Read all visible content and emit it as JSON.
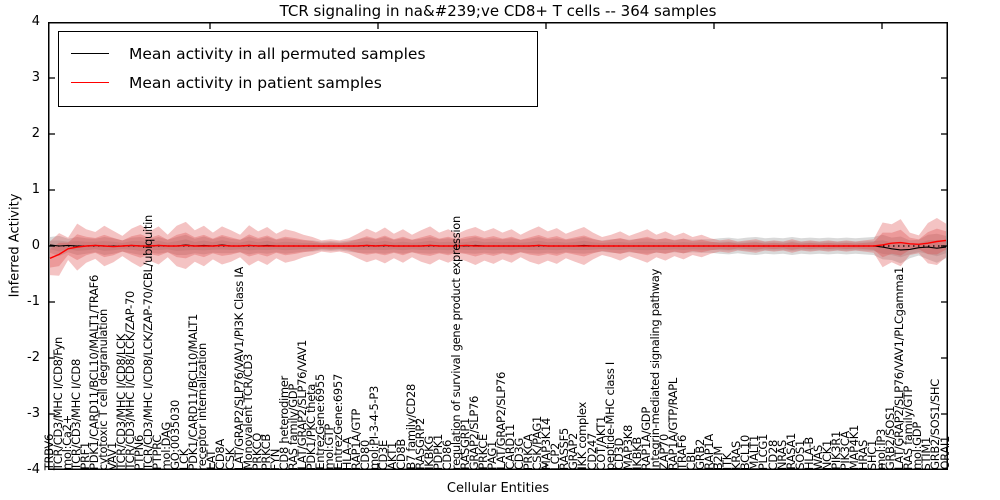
{
  "figure": {
    "title": "TCR signaling in na&#239;ve CD8+ T cells -- 364 samples",
    "xlabel": "Cellular Entities",
    "ylabel": "Inferred Activity"
  },
  "chart_data": {
    "type": "line",
    "title": "TCR signaling in na&#239;ve CD8+ T cells -- 364 samples",
    "xlabel": "Cellular Entities",
    "ylabel": "Inferred Activity",
    "ylim": [
      -4,
      4
    ],
    "yticks": [
      4,
      3,
      2,
      1,
      0,
      -1,
      -2,
      -3,
      -4
    ],
    "grid": false,
    "legend_position": "upper left",
    "legend": [
      {
        "label": "Mean activity in all permuted samples",
        "color": "#000000"
      },
      {
        "label": "Mean activity in patient samples",
        "color": "#ff0000"
      }
    ],
    "band_colors": {
      "patient": "#dd4444",
      "permuted": "#9a9a9a"
    },
    "categories": [
      "TRBV6",
      "TCR/CD3/MHC I/CD8/Fyn",
      "mol:Ca2+",
      "TCR/CD3/MHC I/CD8",
      "PRF1",
      "PDK1/CARD11/BCL10/MALT1/TRAF6",
      "cytotoxic T cell degranulation",
      "VAV1",
      "TCR/CD3/MHC I/CD8/LCK",
      "TCR/CD3/MHC I/CD8/LCK/ZAP-70",
      "PTPN6",
      "TCR/CD3/MHC I/CD8/LCK/ZAP-70/CBL/ubiquitin",
      "PTPRC",
      "mol:DAG",
      "GO:0035030",
      "LCK",
      "PDK1/CARD11/BCL10/MALT1",
      "receptor internalization",
      "LAT",
      "CD8A",
      "CSK",
      "LAT/GRAP2/SLP76/VAV1/PI3K Class IA",
      "Monovalent TCR/CD3",
      "PRKCQ",
      "PRKCB",
      "FYN",
      "CD8 heterodimer",
      "RAS family/GDP",
      "LAT/GRAP2/SLP76/VAV1",
      "PDK1/PKC theta",
      "EntrezGene:6955",
      "mol:GTP",
      "EntrezGene:6957",
      "HLA-A",
      "RAP1A/GTP",
      "CD80",
      "mol:PI-3-4-5-P3",
      "CD3E",
      "AKT1",
      "CD8B",
      "B7 family/CD28",
      "RASGRP2",
      "IKBKG",
      "PDPK1",
      "CD86",
      "regulation of survival gene product expression",
      "RASGRP1",
      "GRAP2/SLP76",
      "PRKCE",
      "PAG1",
      "LAT/GRAP2/SLP76",
      "CARD11",
      "CD3G",
      "PRKCA",
      "CSK/PAG1",
      "MAP3K14",
      "LCP2",
      "RASSF5",
      "GRAP2",
      "IKK complex",
      "CD247",
      "COT/AKT1",
      "peptide-MHC class I",
      "CD3D",
      "MAP3K8",
      "IKBKB",
      "RAP1A/GDP",
      "integrin-mediated signaling pathway",
      "ZAP70",
      "RAP1A/GTP/RAPL",
      "TRAF6",
      "CBL",
      "GRB2",
      "RAP1A",
      "B2M",
      "ITK",
      "KRAS",
      "BCL10",
      "MALT1",
      "PLCG1",
      "CD28",
      "NRAS",
      "RASA1",
      "SOS1",
      "HLA-B",
      "WAS",
      "NCK1",
      "PIK3R1",
      "PIK3CA",
      "MAP4K1",
      "HRAS",
      "SHC1",
      "mol:IP3",
      "GRB2/SOS1",
      "LAT/GRAP2/SLP76/VAV1/PLCgamma1",
      "RAS family/GTP",
      "mol:GDP",
      "STIM1",
      "GRB2/SOS1/SHC",
      "ORAI1"
    ],
    "series": [
      {
        "name": "Mean activity in all permuted samples",
        "color": "#000000",
        "style": "dashdot",
        "values": [
          0.02,
          0,
          0.01,
          0,
          0,
          0.01,
          0,
          0,
          0,
          0.01,
          0,
          0,
          0.01,
          0,
          0,
          0.02,
          0,
          0.01,
          0,
          0.02,
          0,
          0,
          0.01,
          0,
          0.01,
          0,
          0,
          0,
          0,
          0,
          0,
          0,
          0,
          0,
          0,
          0.01,
          0,
          0.01,
          0,
          0,
          0,
          0,
          0.01,
          0,
          0,
          0,
          0,
          0.01,
          0,
          0,
          0,
          0,
          0,
          0,
          0.01,
          0,
          0,
          0,
          0,
          0.01,
          0,
          0,
          0,
          0,
          0,
          0,
          0,
          0,
          0,
          0,
          0,
          0,
          0,
          0,
          0,
          0,
          0,
          0,
          0,
          0,
          0,
          0,
          0,
          0,
          0,
          0,
          0,
          0,
          0,
          0,
          0,
          0,
          -0.02,
          -0.05,
          -0.07,
          -0.06,
          -0.03,
          -0.02,
          -0.04,
          -0.02
        ]
      },
      {
        "name": "Mean activity in patient samples",
        "color": "#ff0000",
        "style": "solid",
        "values": [
          -0.22,
          -0.15,
          -0.05,
          -0.02,
          0,
          0.01,
          0,
          -0.01,
          0,
          0.01,
          0,
          0,
          0.01,
          0,
          0,
          0.01,
          0,
          0,
          0,
          0.01,
          0,
          0,
          0.01,
          0,
          0,
          0,
          0,
          0,
          0,
          0,
          0,
          0,
          0,
          0,
          0,
          0.01,
          0,
          0.01,
          0,
          0,
          0,
          0,
          0.01,
          0,
          0,
          0,
          0.01,
          0,
          0,
          0,
          0,
          0,
          0,
          0,
          0.01,
          0,
          0,
          0,
          0,
          0,
          0,
          0,
          0,
          0,
          0,
          0,
          0,
          0,
          0,
          0,
          0,
          0,
          0,
          0,
          0,
          0,
          0,
          0,
          0,
          0,
          0,
          0,
          0,
          0,
          0,
          0,
          0,
          0,
          0,
          0,
          0,
          0,
          0.02,
          0.05,
          0.06,
          0.04,
          0.03,
          0.05,
          0.08,
          0.1
        ]
      }
    ],
    "bands": [
      {
        "name": "permuted-sample spread",
        "color": "#9a9a9a",
        "opacity": 0.38,
        "amplitude": [
          0.14,
          0.18,
          0.12,
          0.16,
          0.14,
          0.12,
          0.16,
          0.14,
          0.1,
          0.14,
          0.16,
          0.12,
          0.15,
          0.11,
          0.16,
          0.18,
          0.13,
          0.16,
          0.12,
          0.15,
          0.13,
          0.11,
          0.16,
          0.12,
          0.15,
          0.11,
          0.14,
          0.12,
          0.1,
          0.1,
          0.08,
          0.09,
          0.08,
          0.1,
          0.12,
          0.14,
          0.12,
          0.15,
          0.11,
          0.14,
          0.11,
          0.13,
          0.15,
          0.12,
          0.14,
          0.11,
          0.13,
          0.15,
          0.12,
          0.14,
          0.12,
          0.14,
          0.11,
          0.13,
          0.15,
          0.12,
          0.14,
          0.11,
          0.13,
          0.15,
          0.12,
          0.1,
          0.12,
          0.13,
          0.11,
          0.13,
          0.14,
          0.12,
          0.13,
          0.11,
          0.13,
          0.11,
          0.12,
          0.12,
          0.14,
          0.15,
          0.13,
          0.15,
          0.16,
          0.14,
          0.15,
          0.14,
          0.16,
          0.14,
          0.15,
          0.14,
          0.15,
          0.14,
          0.15,
          0.14,
          0.15,
          0.16,
          0.22,
          0.2,
          0.24,
          0.16,
          0.14,
          0.22,
          0.26,
          0.2
        ]
      },
      {
        "name": "patient-sample spread",
        "color": "#dd4444",
        "opacity": 0.32,
        "amplitude": [
          0.3,
          0.38,
          0.2,
          0.42,
          0.3,
          0.24,
          0.36,
          0.28,
          0.18,
          0.3,
          0.38,
          0.26,
          0.34,
          0.2,
          0.36,
          0.42,
          0.28,
          0.36,
          0.24,
          0.34,
          0.28,
          0.2,
          0.36,
          0.26,
          0.34,
          0.22,
          0.3,
          0.26,
          0.2,
          0.16,
          0.1,
          0.12,
          0.1,
          0.14,
          0.22,
          0.3,
          0.24,
          0.32,
          0.22,
          0.3,
          0.2,
          0.28,
          0.34,
          0.24,
          0.3,
          0.22,
          0.28,
          0.34,
          0.26,
          0.32,
          0.24,
          0.3,
          0.2,
          0.28,
          0.34,
          0.26,
          0.32,
          0.22,
          0.28,
          0.34,
          0.24,
          0.16,
          0.2,
          0.26,
          0.18,
          0.24,
          0.3,
          0.2,
          0.26,
          0.18,
          0.24,
          0.16,
          0.2,
          0.14,
          0.1,
          0.12,
          0.08,
          0.1,
          0.12,
          0.08,
          0.1,
          0.08,
          0.12,
          0.08,
          0.1,
          0.08,
          0.1,
          0.08,
          0.1,
          0.08,
          0.1,
          0.12,
          0.4,
          0.34,
          0.42,
          0.2,
          0.16,
          0.36,
          0.42,
          0.3
        ]
      }
    ]
  }
}
